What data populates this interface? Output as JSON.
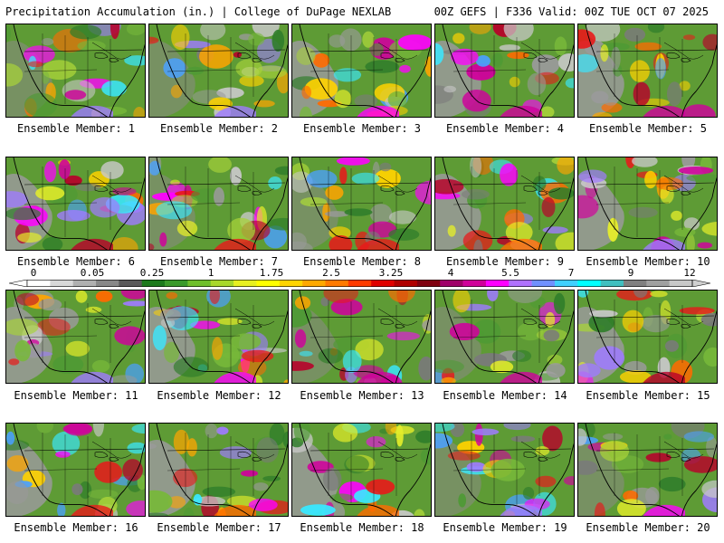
{
  "header": {
    "left": "Precipitation Accumulation (in.) | College of DuPage NEXLAB",
    "right": "00Z GEFS | F336 Valid: 00Z TUE OCT 07 2025"
  },
  "members": [
    {
      "label": "Ensemble Member: 1"
    },
    {
      "label": "Ensemble Member: 2"
    },
    {
      "label": "Ensemble Member: 3"
    },
    {
      "label": "Ensemble Member: 4"
    },
    {
      "label": "Ensemble Member: 5"
    },
    {
      "label": "Ensemble Member: 6"
    },
    {
      "label": "Ensemble Member: 7"
    },
    {
      "label": "Ensemble Member: 8"
    },
    {
      "label": "Ensemble Member: 9"
    },
    {
      "label": "Ensemble Member: 10"
    },
    {
      "label": "Ensemble Member: 11"
    },
    {
      "label": "Ensemble Member: 12"
    },
    {
      "label": "Ensemble Member: 13"
    },
    {
      "label": "Ensemble Member: 14"
    },
    {
      "label": "Ensemble Member: 15"
    },
    {
      "label": "Ensemble Member: 16"
    },
    {
      "label": "Ensemble Member: 17"
    },
    {
      "label": "Ensemble Member: 18"
    },
    {
      "label": "Ensemble Member: 19"
    },
    {
      "label": "Ensemble Member: 20"
    }
  ],
  "colorbar": {
    "ticks": [
      "0",
      "0.05",
      "0.25",
      "1",
      "1.75",
      "2.5",
      "3.25",
      "4",
      "5.5",
      "7",
      "9",
      "12"
    ],
    "colors": [
      "#ffffff",
      "#d8d8d8",
      "#b0b0b0",
      "#888888",
      "#5a5a5a",
      "#1c7a1c",
      "#3a9a2a",
      "#6fbf2a",
      "#a8d82a",
      "#e8f020",
      "#ffff00",
      "#ffd400",
      "#ffa800",
      "#ff7a00",
      "#ff3a00",
      "#e00000",
      "#b00000",
      "#800010",
      "#a0006a",
      "#d0009a",
      "#ff00ff",
      "#b070ff",
      "#7090ff",
      "#40d0ff",
      "#00ffff",
      "#40c0c0",
      "#808080",
      "#a0a0a0",
      "#c8c8c8"
    ]
  }
}
